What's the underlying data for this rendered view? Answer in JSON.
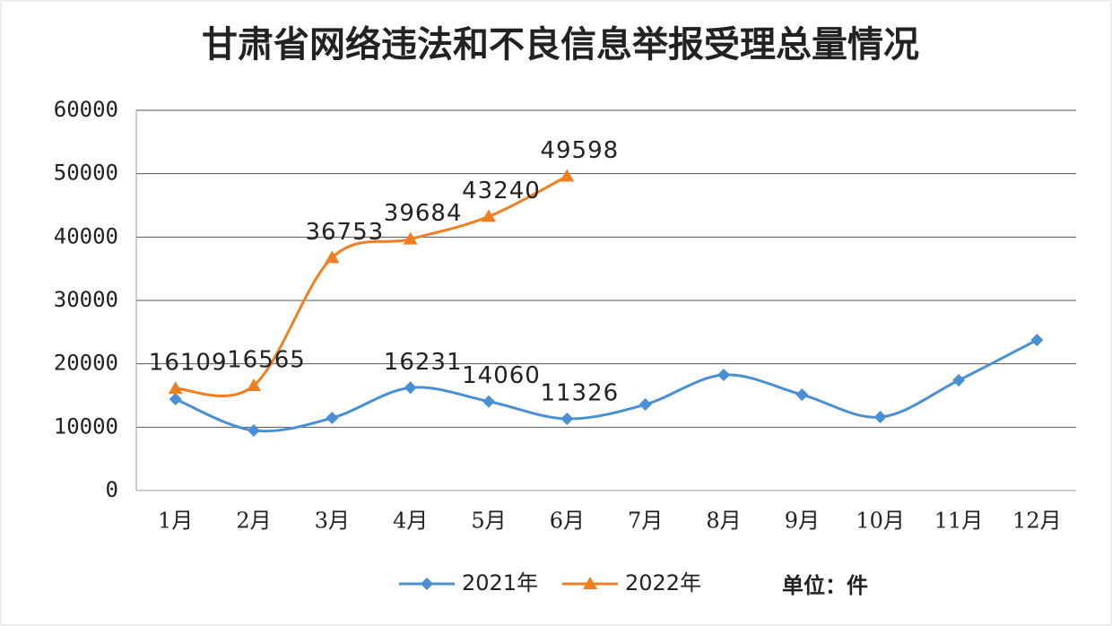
{
  "chart_data": {
    "type": "line",
    "title": "甘肃省网络违法和不良信息举报受理总量情况",
    "annotation": "单位：件",
    "categories": [
      "1月",
      "2月",
      "3月",
      "4月",
      "5月",
      "6月",
      "7月",
      "8月",
      "9月",
      "10月",
      "11月",
      "12月"
    ],
    "series": [
      {
        "name": "2021年",
        "color": "#4a8fd4",
        "marker": "diamond",
        "values": [
          14430,
          9480,
          11460,
          16231,
          14060,
          11326,
          13580,
          18250,
          15130,
          11600,
          17400,
          23760
        ],
        "value_labels": [
          null,
          null,
          null,
          "16231",
          "14060",
          "11326",
          null,
          null,
          null,
          null,
          null,
          null
        ]
      },
      {
        "name": "2022年",
        "color": "#f07f22",
        "marker": "triangle",
        "values": [
          16109,
          16565,
          36753,
          39684,
          43240,
          49598,
          null,
          null,
          null,
          null,
          null,
          null
        ],
        "value_labels": [
          "16109",
          "16565",
          "36753",
          "39684",
          "43240",
          "49598",
          null,
          null,
          null,
          null,
          null,
          null
        ]
      }
    ],
    "ylim": [
      0,
      60000
    ],
    "yticks": [
      0,
      10000,
      20000,
      30000,
      40000,
      50000,
      60000
    ],
    "grid": true,
    "legend": "bottom"
  }
}
